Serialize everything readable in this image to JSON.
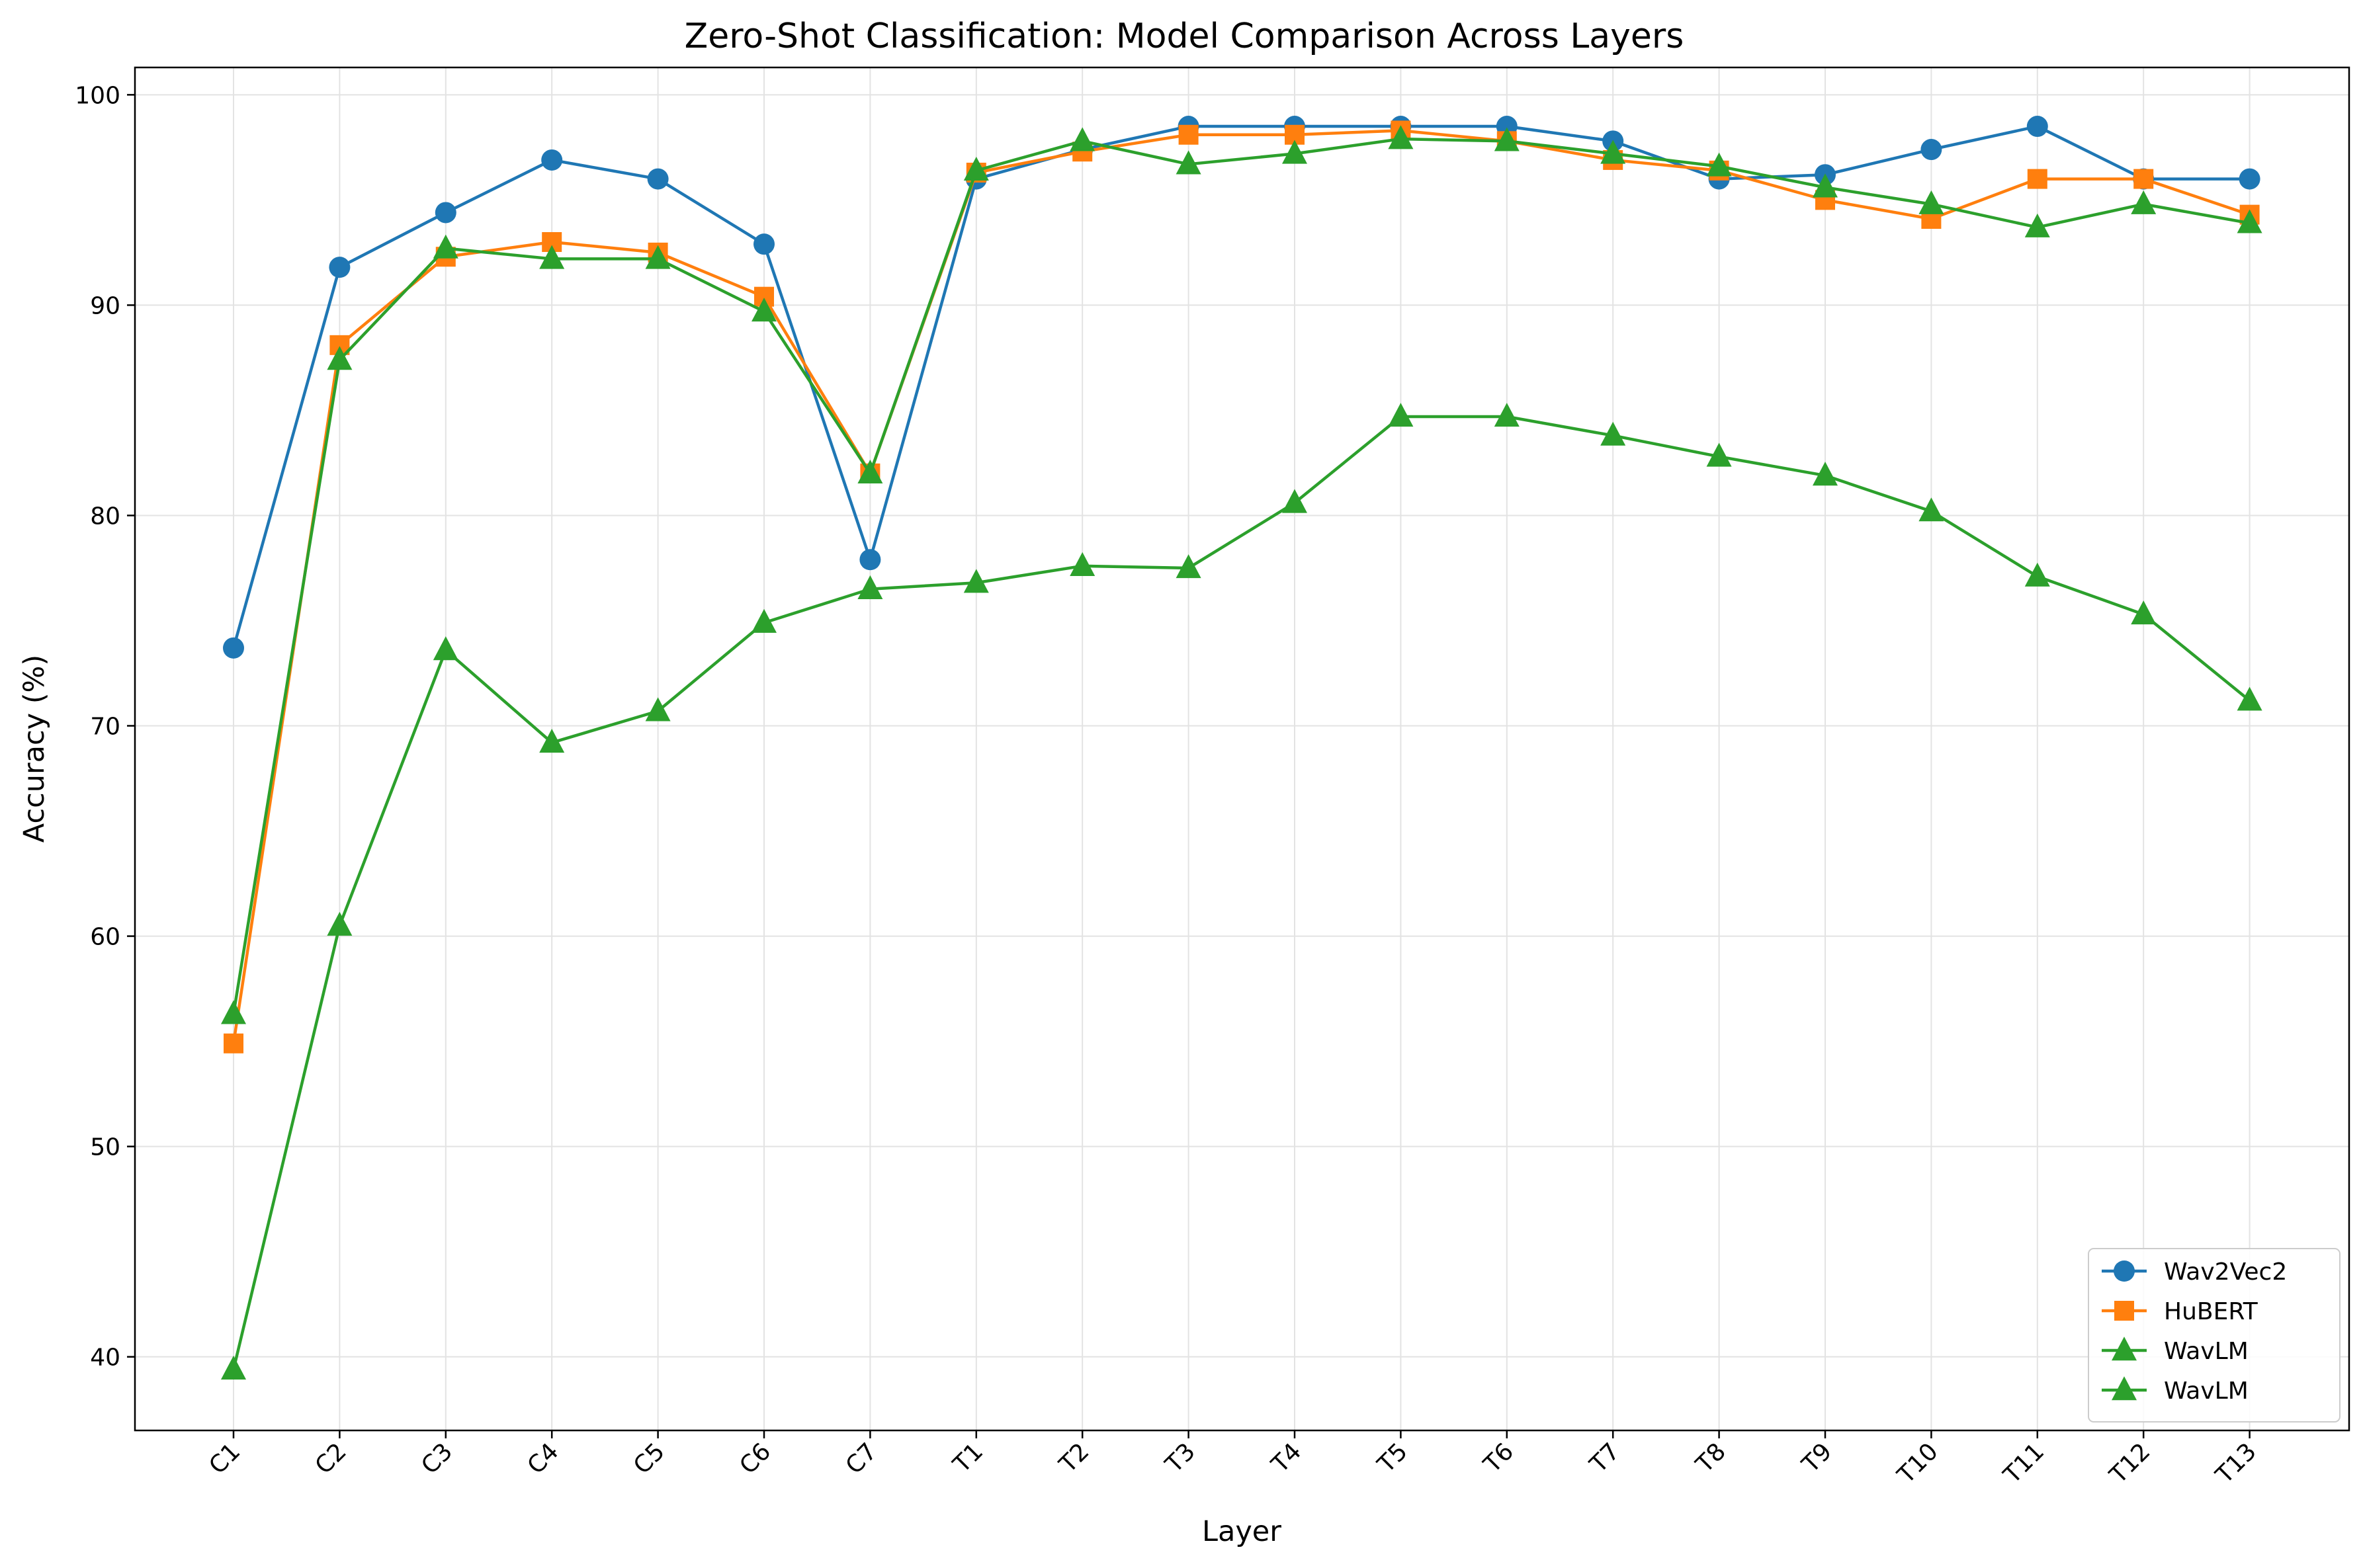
{
  "chart_data": {
    "type": "line",
    "title": "Zero-Shot Classification: Model Comparison Across Layers",
    "xlabel": "Layer",
    "ylabel": "Accuracy (%)",
    "categories": [
      "C1",
      "C2",
      "C3",
      "C4",
      "C5",
      "C6",
      "C7",
      "T1",
      "T2",
      "T3",
      "T4",
      "T5",
      "T6",
      "T7",
      "T8",
      "T9",
      "T10",
      "T11",
      "T12",
      "T13"
    ],
    "yticks": [
      40,
      50,
      60,
      70,
      80,
      90,
      100
    ],
    "ylim": [
      36.5,
      101.3
    ],
    "grid": true,
    "legend_position": "bottom-right",
    "series": [
      {
        "name": "Wav2Vec2",
        "color": "#1f77b4",
        "marker": "circle",
        "values": [
          73.7,
          91.8,
          94.4,
          96.9,
          96.0,
          92.9,
          77.9,
          96.0,
          97.4,
          98.5,
          98.5,
          98.5,
          98.5,
          97.8,
          96.0,
          96.2,
          97.4,
          98.5,
          96.0,
          96.0
        ]
      },
      {
        "name": "HuBERT",
        "color": "#ff7f0e",
        "marker": "square",
        "values": [
          54.9,
          88.1,
          92.3,
          93.0,
          92.5,
          90.4,
          82.0,
          96.3,
          97.3,
          98.1,
          98.1,
          98.3,
          97.8,
          96.9,
          96.4,
          95.0,
          94.1,
          96.0,
          96.0,
          94.3
        ]
      },
      {
        "name": "WavLM",
        "color": "#2ca02c",
        "marker": "triangle",
        "values": [
          56.3,
          87.4,
          92.7,
          92.2,
          92.2,
          89.7,
          82.0,
          96.4,
          97.8,
          96.7,
          97.2,
          97.9,
          97.8,
          97.2,
          96.6,
          95.6,
          94.8,
          93.7,
          94.8,
          93.9
        ]
      },
      {
        "name": "WavLM",
        "color": "#2ca02c",
        "marker": "triangle",
        "values": [
          39.4,
          60.5,
          73.6,
          69.2,
          70.7,
          74.9,
          76.5,
          76.8,
          77.6,
          77.5,
          80.6,
          84.7,
          84.7,
          83.8,
          82.8,
          81.9,
          80.2,
          77.1,
          75.3,
          71.2
        ]
      }
    ]
  }
}
